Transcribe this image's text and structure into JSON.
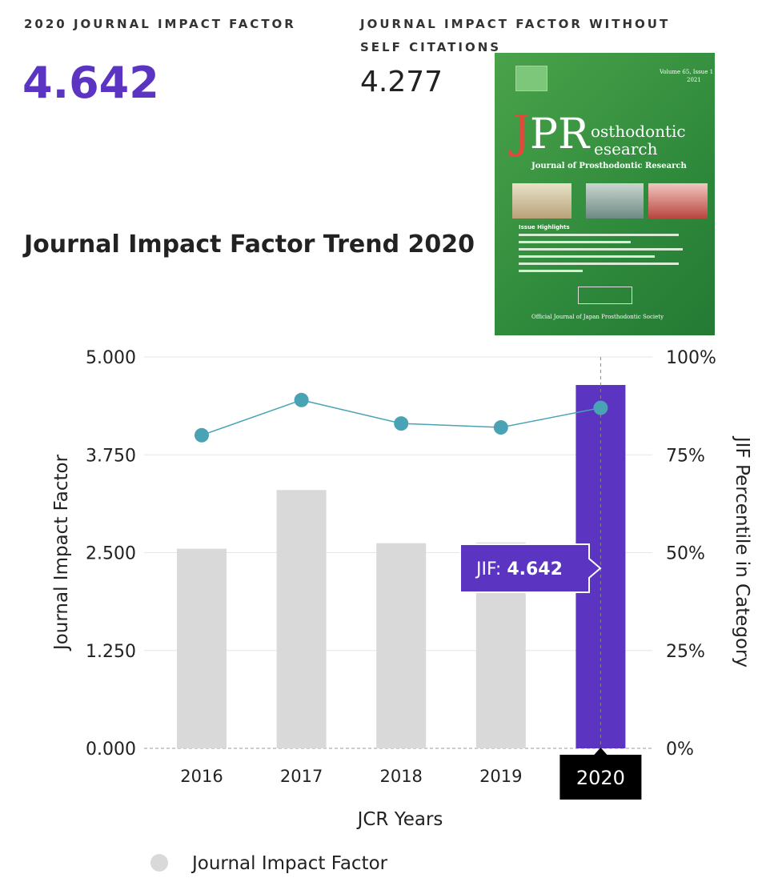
{
  "metrics": {
    "jif_label": "2020 JOURNAL IMPACT FACTOR",
    "jif_value": "4.642",
    "jif_no_self_label": "JOURNAL IMPACT FACTOR WITHOUT SELF CITATIONS",
    "jif_no_self_value": "4.277"
  },
  "trend_title": "Journal Impact Factor Trend 2020",
  "cover": {
    "logo_j": "J",
    "logo_pr": "PR",
    "logo_top": "osthodontic",
    "logo_bottom": "esearch",
    "subtitle": "Journal of Prosthodontic Research",
    "volume": "Volume 65, Issue 1",
    "year": "2021",
    "highlights_title": "Issue Highlights",
    "footer": "Official Journal of Japan Prosthodontic Society"
  },
  "colors": {
    "accent": "#5b35c1",
    "bar_grey": "#d9d9d9",
    "line_teal": "#4aa3b5",
    "cover_green": "#2f8a3c"
  },
  "tooltip": {
    "prefix": "JIF: ",
    "value": "4.642",
    "year": "2020"
  },
  "chart_data": {
    "type": "bar",
    "categories": [
      "2016",
      "2017",
      "2018",
      "2019",
      "2020"
    ],
    "series": [
      {
        "name": "Journal Impact Factor",
        "type": "bar",
        "axis": "left",
        "values": [
          2.55,
          3.3,
          2.62,
          2.63,
          4.642
        ],
        "highlight_index": 4
      },
      {
        "type": "line",
        "axis": "right",
        "values": [
          80,
          89,
          83,
          82,
          87
        ]
      }
    ],
    "xlabel": "JCR Years",
    "ylabel": "Journal Impact Factor",
    "y2label": "JIF Percentile in Category",
    "ylim": [
      0,
      5
    ],
    "y2lim": [
      0,
      100
    ],
    "yticks": [
      "0.000",
      "1.250",
      "2.500",
      "3.750",
      "5.000"
    ],
    "y2ticks": [
      "0%",
      "25%",
      "50%",
      "75%",
      "100%"
    ],
    "grid": true,
    "legend": "bottom",
    "legend_entries": [
      "Journal Impact Factor"
    ]
  }
}
